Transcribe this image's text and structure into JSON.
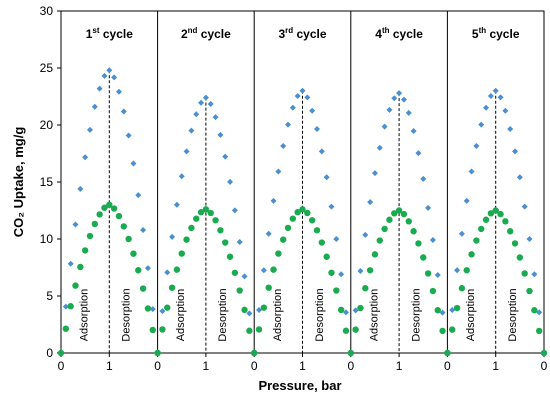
{
  "chart_data": {
    "type": "scatter",
    "ylabel": "CO₂ Uptake, mg/g",
    "xlabel": "Pressure, bar",
    "ylim": [
      0,
      30
    ],
    "yticks": [
      0,
      5,
      10,
      15,
      20,
      25,
      30
    ],
    "panel_xticks": [
      "0",
      "1",
      "0",
      "1",
      "0",
      "1",
      "0",
      "1",
      "0",
      "1",
      "0"
    ],
    "grid": false,
    "legend": "none",
    "cycles": [
      {
        "ord": "1",
        "sup": "st",
        "rest": " cycle"
      },
      {
        "ord": "2",
        "sup": "nd",
        "rest": " cycle"
      },
      {
        "ord": "3",
        "sup": "rd",
        "rest": " cycle"
      },
      {
        "ord": "4",
        "sup": "th",
        "rest": " cycle"
      },
      {
        "ord": "5",
        "sup": "th",
        "rest": " cycle"
      }
    ],
    "phase_labels": {
      "adsorption": "Adsorption",
      "desorption": "Desorption"
    },
    "series": [
      {
        "color": "#4a8fd0",
        "marker": "diamond",
        "peaks": [
          24.8,
          22.4,
          23.0,
          22.8,
          23.0
        ]
      },
      {
        "color": "#1aaa50",
        "marker": "circle",
        "peaks": [
          13.0,
          12.6,
          12.6,
          12.5,
          12.5
        ]
      }
    ]
  }
}
